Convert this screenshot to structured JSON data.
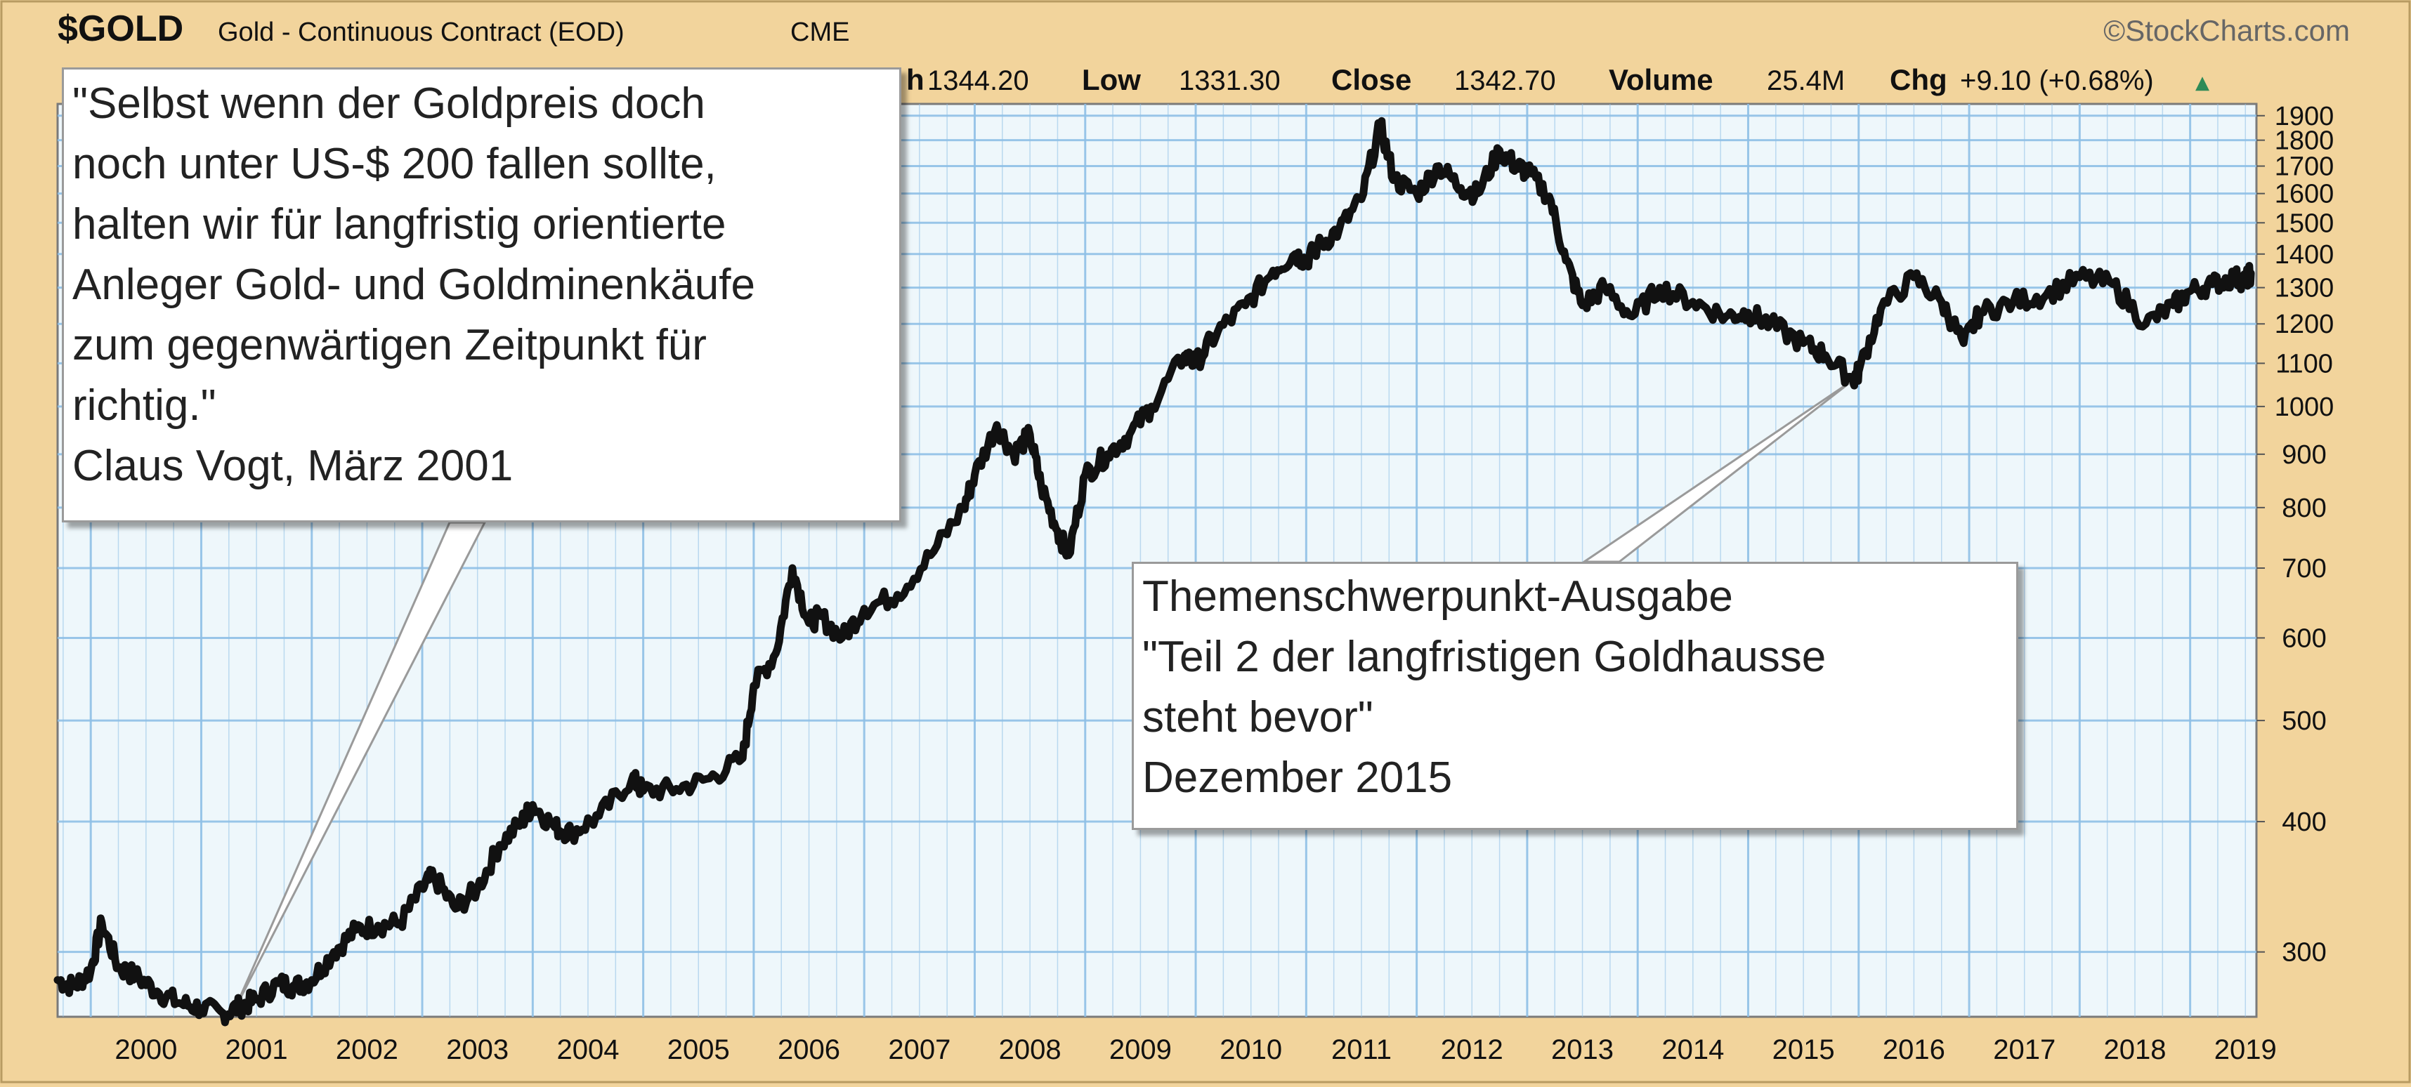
{
  "header": {
    "symbol": "$GOLD",
    "name": "Gold - Continuous Contract (EOD)",
    "exchange": "CME",
    "watermark": "©StockCharts.com",
    "high_label": "h",
    "high_value": "1344.20",
    "low_label": "Low",
    "low_value": "1331.30",
    "close_label": "Close",
    "close_value": "1342.70",
    "volume_label": "Volume",
    "volume_value": "25.4M",
    "chg_label": "Chg",
    "chg_value": "+9.10 (+0.68%)",
    "chg_arrow": "▲"
  },
  "colors": {
    "background": "#f2d49c",
    "plot": "#eef7fb",
    "grid": "#8fc0e6",
    "line": "#111111",
    "up": "#2e8b57"
  },
  "annotations": {
    "vogt": [
      "\"Selbst wenn der Goldpreis doch",
      "noch unter US-$ 200 fallen sollte,",
      "halten wir für langfristig orientierte",
      "Anleger Gold- und Goldminenkäufe",
      "zum gegenwärtigen Zeitpunkt für",
      "richtig.\"",
      "Claus Vogt, März 2001"
    ],
    "thema": [
      "Themenschwerpunkt-Ausgabe",
      "\"Teil 2 der langfristigen Goldhausse",
      "steht bevor\"",
      "Dezember 2015"
    ]
  },
  "chart_data": {
    "type": "line",
    "title": "Gold - Continuous Contract (EOD)",
    "y_scale": "log",
    "ylim": [
      260,
      1950
    ],
    "xlim": [
      1999.7,
      2019.6
    ],
    "y_ticks": [
      300,
      400,
      500,
      600,
      700,
      800,
      900,
      1000,
      1100,
      1200,
      1300,
      1400,
      1500,
      1600,
      1700,
      1800,
      1900
    ],
    "x_ticks": [
      2000,
      2001,
      2002,
      2003,
      2004,
      2005,
      2006,
      2007,
      2008,
      2009,
      2010,
      2011,
      2012,
      2013,
      2014,
      2015,
      2016,
      2017,
      2018,
      2019
    ],
    "grid": true,
    "series": [
      {
        "x": [
          1999.7,
          1999.85,
          2000.0,
          2000.1,
          2000.25,
          2000.4,
          2000.6,
          2000.8,
          2001.0,
          2001.2,
          2001.35,
          2001.5,
          2001.7,
          2001.85,
          2002.0,
          2002.2,
          2002.4,
          2002.6,
          2002.8,
          2003.0,
          2003.1,
          2003.3,
          2003.5,
          2003.7,
          2003.9,
          2004.0,
          2004.2,
          2004.35,
          2004.6,
          2004.9,
          2005.0,
          2005.3,
          2005.6,
          2005.9,
          2006.0,
          2006.2,
          2006.35,
          2006.5,
          2006.6,
          2006.8,
          2007.0,
          2007.3,
          2007.6,
          2007.9,
          2008.0,
          2008.2,
          2008.35,
          2008.5,
          2008.6,
          2008.75,
          2008.85,
          2009.0,
          2009.2,
          2009.4,
          2009.6,
          2009.9,
          2010.0,
          2010.2,
          2010.45,
          2010.7,
          2010.9,
          2011.0,
          2011.1,
          2011.3,
          2011.5,
          2011.67,
          2011.8,
          2012.0,
          2012.2,
          2012.4,
          2012.55,
          2012.75,
          2012.9,
          2013.0,
          2013.2,
          2013.35,
          2013.5,
          2013.7,
          2013.95,
          2014.2,
          2014.5,
          2014.8,
          2015.0,
          2015.2,
          2015.5,
          2015.7,
          2015.95,
          2016.0,
          2016.2,
          2016.5,
          2016.75,
          2016.95,
          2017.1,
          2017.4,
          2017.7,
          2018.0,
          2018.3,
          2018.6,
          2018.85,
          2019.0,
          2019.2,
          2019.4,
          2019.5,
          2019.55
        ],
        "y": [
          282,
          278,
          288,
          320,
          290,
          285,
          275,
          268,
          265,
          262,
          266,
          270,
          280,
          278,
          282,
          300,
          315,
          318,
          320,
          345,
          355,
          330,
          345,
          380,
          400,
          415,
          395,
          390,
          405,
          440,
          428,
          430,
          440,
          460,
          540,
          580,
          700,
          620,
          630,
          600,
          640,
          660,
          720,
          800,
          860,
          960,
          900,
          940,
          840,
          760,
          720,
          860,
          900,
          940,
          1000,
          1120,
          1100,
          1180,
          1250,
          1350,
          1400,
          1380,
          1420,
          1480,
          1580,
          1860,
          1650,
          1600,
          1700,
          1620,
          1600,
          1760,
          1700,
          1680,
          1590,
          1380,
          1250,
          1300,
          1220,
          1300,
          1260,
          1220,
          1230,
          1200,
          1150,
          1120,
          1060,
          1080,
          1240,
          1330,
          1260,
          1150,
          1230,
          1260,
          1280,
          1330,
          1310,
          1200,
          1250,
          1290,
          1310,
          1330,
          1320,
          1342
        ]
      }
    ]
  }
}
